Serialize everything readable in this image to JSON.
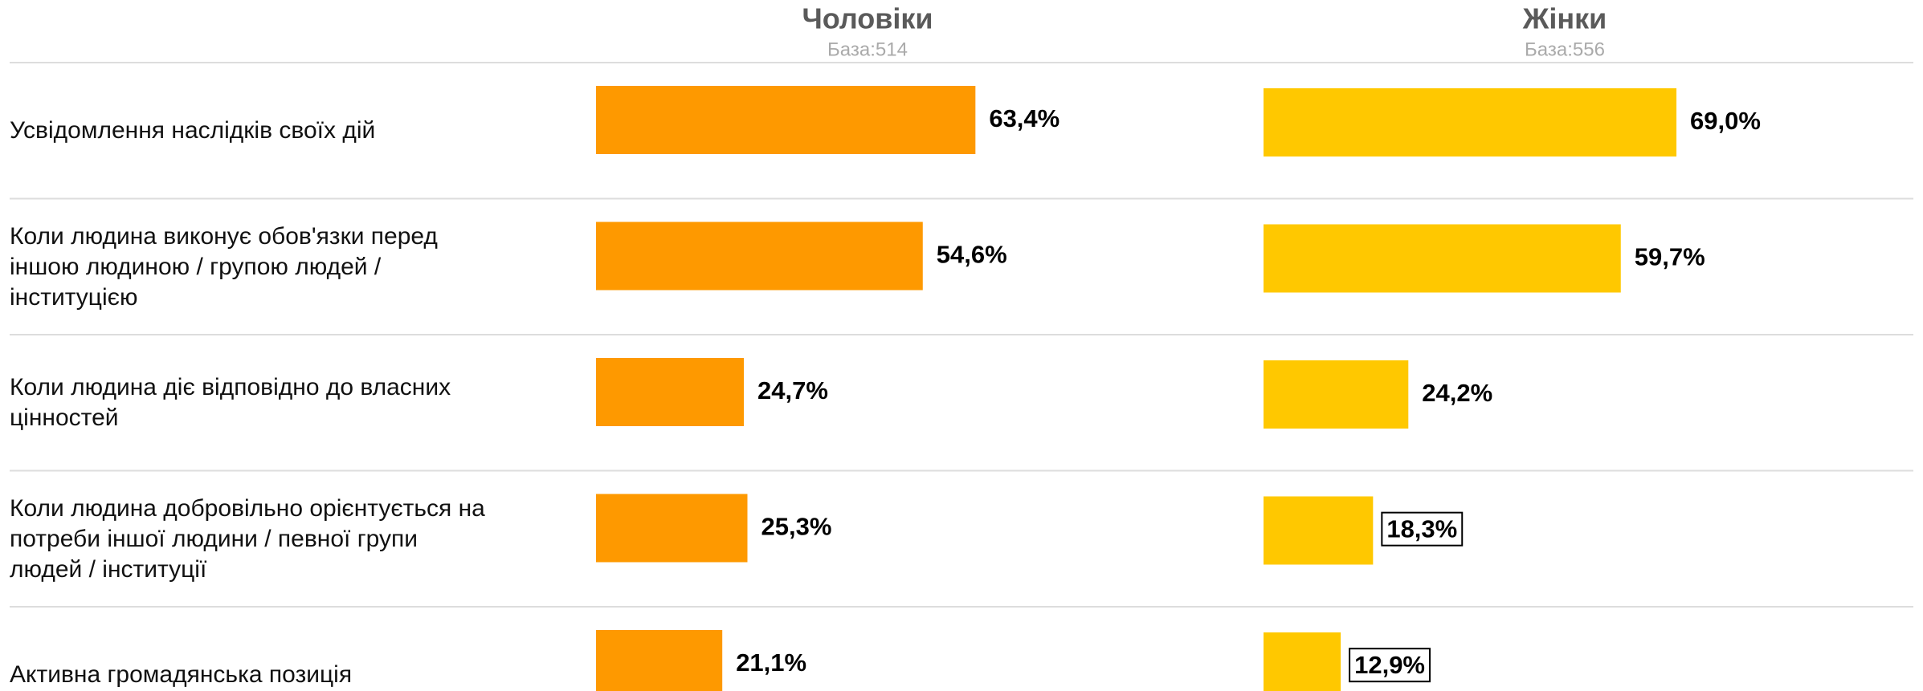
{
  "chart_data": {
    "type": "bar",
    "categories": [
      "Усвідомлення наслідків своїх дій",
      "Коли людина виконує обов'язки перед\nіншою людиною / групою людей /\nінституцією",
      "Коли людина діє відповідно до власних\nцінностей",
      "Коли людина добровільно орієнтується на\nпотреби іншої людини / певної групи\nлюдей / інституції",
      "Активна громадянська позиція"
    ],
    "series": [
      {
        "name": "Чоловіки",
        "base": "База:514",
        "color": "#fe9900",
        "values": [
          63.4,
          54.6,
          24.7,
          25.3,
          21.1
        ],
        "value_labels": [
          "63,4%",
          "54,6%",
          "24,7%",
          "25,3%",
          "21,1%"
        ],
        "boxed": [
          false,
          false,
          false,
          false,
          false
        ]
      },
      {
        "name": "Жінки",
        "base": "База:556",
        "color": "#ffc800",
        "values": [
          69.0,
          59.7,
          24.2,
          18.3,
          12.9
        ],
        "value_labels": [
          "69,0%",
          "59,7%",
          "24,2%",
          "18,3%",
          "12,9%"
        ],
        "boxed": [
          false,
          false,
          false,
          true,
          true
        ]
      }
    ]
  }
}
